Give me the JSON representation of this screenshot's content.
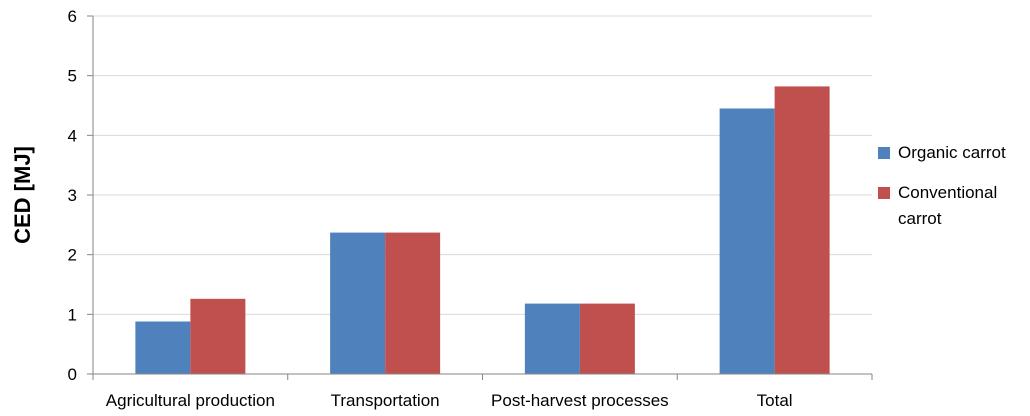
{
  "chart_data": {
    "type": "bar",
    "categories": [
      "Agricultural production",
      "Transportation",
      "Post-harvest processes",
      "Total"
    ],
    "series": [
      {
        "name": "Organic carrot",
        "values": [
          0.88,
          2.37,
          1.18,
          4.45
        ],
        "color": "#4f81bd"
      },
      {
        "name": "Conventional carrot",
        "values": [
          1.26,
          2.37,
          1.18,
          4.82
        ],
        "color": "#c0504d"
      }
    ],
    "ylabel": "CED [MJ]",
    "xlabel": "",
    "ylim": [
      0,
      6
    ],
    "yticks": [
      "0",
      "1",
      "2",
      "3",
      "4",
      "5",
      "6"
    ],
    "grid": true,
    "legend_position": "right"
  }
}
